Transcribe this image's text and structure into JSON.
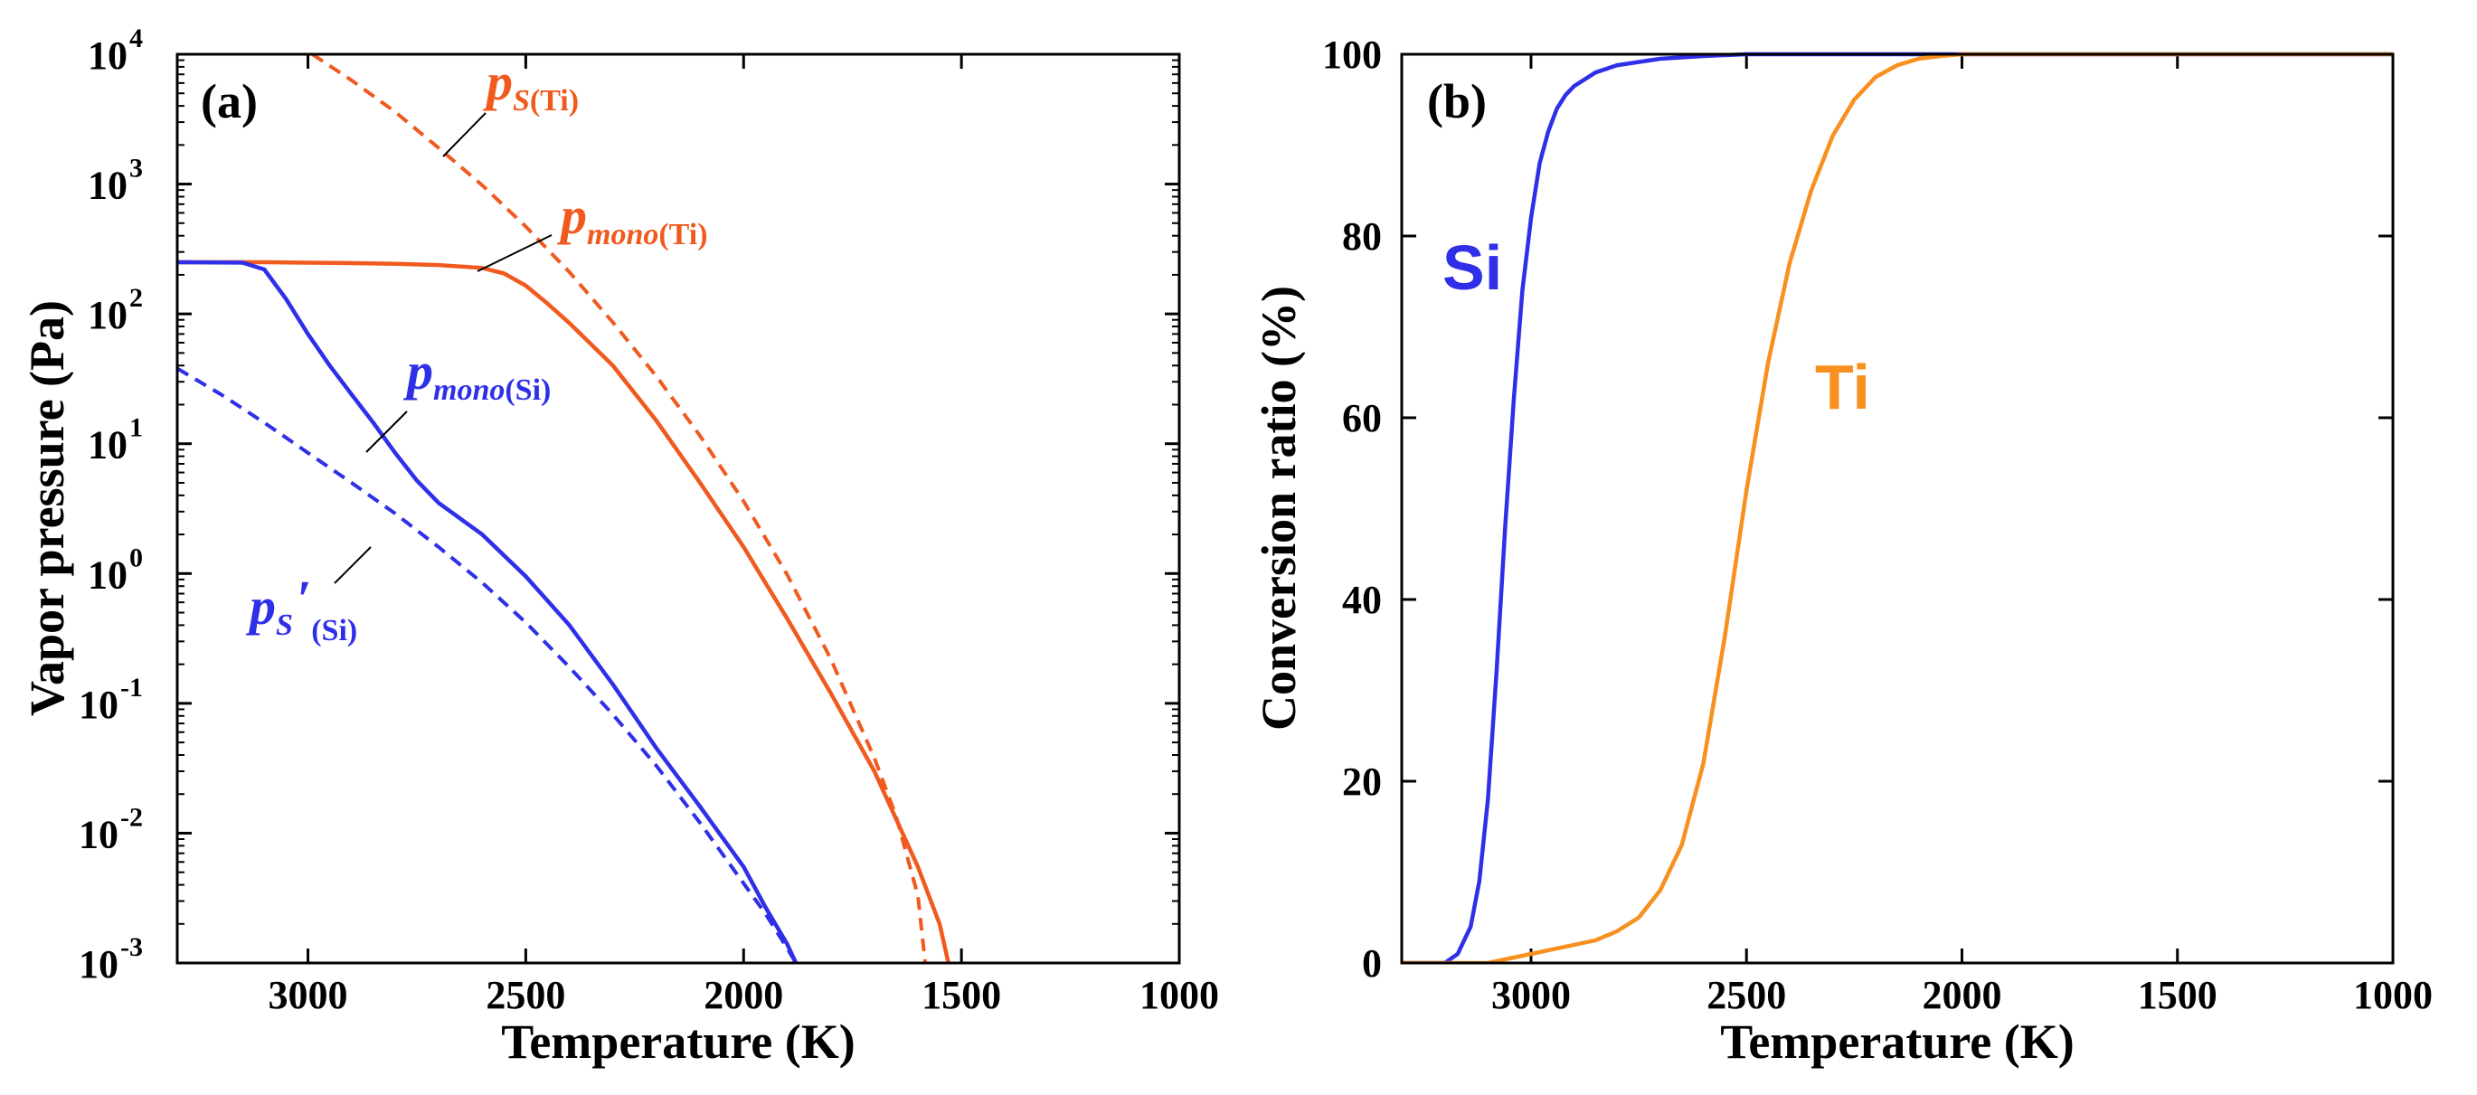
{
  "colors": {
    "ti_a": "#f05a1e",
    "si": "#2f2fe8",
    "ti_b": "#f7901e",
    "axis": "#000000"
  },
  "chart_data": [
    {
      "type": "line",
      "panel_label": "(a)",
      "xlabel": "Temperature (K)",
      "ylabel": "Vapor pressure (Pa)",
      "xlim": [
        3300,
        1000
      ],
      "x_ticks": [
        3000,
        2500,
        2000,
        1500,
        1000
      ],
      "y_scale": "log",
      "ylim": [
        0.001,
        10000
      ],
      "y_ticks": [
        {
          "base": "10",
          "exp": "-3",
          "value": 0.001
        },
        {
          "base": "10",
          "exp": "-2",
          "value": 0.01
        },
        {
          "base": "10",
          "exp": "-1",
          "value": 0.1
        },
        {
          "base": "10",
          "exp": "0",
          "value": 1
        },
        {
          "base": "10",
          "exp": "1",
          "value": 10
        },
        {
          "base": "10",
          "exp": "2",
          "value": 100
        },
        {
          "base": "10",
          "exp": "3",
          "value": 1000
        },
        {
          "base": "10",
          "exp": "4",
          "value": 10000
        }
      ],
      "annotations": [
        {
          "name": "ps-ti",
          "p": "p",
          "sub_italic": "S",
          "sub_bold": "(Ti)",
          "color_key": "ti_a"
        },
        {
          "name": "pmono-ti",
          "p": "p",
          "sub_italic": "mono",
          "sub_bold": "(Ti)",
          "color_key": "ti_a"
        },
        {
          "name": "pmono-si",
          "p": "p",
          "sub_italic": "mono",
          "sub_bold": "(Si)",
          "color_key": "si"
        },
        {
          "name": "ps-prime-si",
          "p": "p",
          "sub_italic": "S",
          "prime": "′",
          "sub_bold": "(Si)",
          "color_key": "si"
        }
      ],
      "series": [
        {
          "name": "p_S(Ti)",
          "style": "dashed",
          "color_key": "ti_a",
          "x": [
            2990,
            2900,
            2800,
            2700,
            2600,
            2500,
            2400,
            2300,
            2200,
            2100,
            2000,
            1900,
            1800,
            1700,
            1650,
            1600,
            1583
          ],
          "y": [
            10000,
            6300,
            3600,
            1900,
            980,
            470,
            210,
            86,
            33,
            11.5,
            3.6,
            0.98,
            0.22,
            0.038,
            0.0135,
            0.0033,
            0.001
          ]
        },
        {
          "name": "p_mono(Ti)",
          "style": "solid",
          "color_key": "ti_a",
          "x": [
            3300,
            3100,
            3000,
            2900,
            2800,
            2700,
            2600,
            2550,
            2500,
            2450,
            2400,
            2300,
            2200,
            2100,
            2000,
            1900,
            1800,
            1700,
            1600,
            1550,
            1530
          ],
          "y": [
            250,
            250,
            248,
            246,
            243,
            238,
            226,
            205,
            165,
            120,
            85,
            40,
            15,
            5,
            1.6,
            0.45,
            0.12,
            0.03,
            0.0055,
            0.002,
            0.001
          ]
        },
        {
          "name": "p_mono(Si)",
          "style": "solid",
          "color_key": "si",
          "x": [
            3300,
            3150,
            3100,
            3050,
            3000,
            2950,
            2900,
            2850,
            2800,
            2750,
            2700,
            2600,
            2500,
            2400,
            2300,
            2200,
            2100,
            2000,
            1950,
            1900,
            1880
          ],
          "y": [
            250,
            248,
            220,
            130,
            70,
            40,
            24,
            14.5,
            8.5,
            5.2,
            3.5,
            2.0,
            0.95,
            0.4,
            0.14,
            0.045,
            0.016,
            0.0055,
            0.0027,
            0.0014,
            0.001
          ]
        },
        {
          "name": "p_S'(Si)",
          "style": "dashed",
          "color_key": "si",
          "x": [
            3300,
            3200,
            3100,
            3000,
            2900,
            2800,
            2700,
            2600,
            2500,
            2400,
            2300,
            2200,
            2100,
            2000,
            1950,
            1900,
            1880
          ],
          "y": [
            38,
            24,
            14.5,
            8.5,
            5,
            2.9,
            1.6,
            0.85,
            0.42,
            0.19,
            0.082,
            0.033,
            0.012,
            0.0041,
            0.0024,
            0.0013,
            0.001
          ]
        }
      ]
    },
    {
      "type": "line",
      "panel_label": "(b)",
      "xlabel": "Temperature (K)",
      "ylabel": "Conversion ratio (%)",
      "xlim": [
        3300,
        1000
      ],
      "x_ticks": [
        3000,
        2500,
        2000,
        1500,
        1000
      ],
      "ylim": [
        0,
        100
      ],
      "y_ticks": [
        0,
        20,
        40,
        60,
        80,
        100
      ],
      "series_labels": [
        {
          "text": "Si",
          "color_key": "si"
        },
        {
          "text": "Ti",
          "color_key": "ti_b"
        }
      ],
      "series": [
        {
          "name": "Si",
          "style": "solid",
          "color_key": "si",
          "x": [
            3300,
            3200,
            3170,
            3140,
            3120,
            3100,
            3080,
            3060,
            3040,
            3020,
            3000,
            2980,
            2960,
            2940,
            2920,
            2900,
            2850,
            2800,
            2700,
            2600,
            2500,
            2000,
            1000
          ],
          "y": [
            0,
            0,
            1,
            4,
            9,
            18,
            32,
            48,
            62,
            74,
            82,
            88,
            91.5,
            94,
            95.5,
            96.5,
            98,
            98.8,
            99.5,
            99.8,
            100,
            100,
            100
          ]
        },
        {
          "name": "Ti",
          "style": "solid",
          "color_key": "ti_b",
          "x": [
            3300,
            3100,
            3000,
            2950,
            2900,
            2850,
            2800,
            2750,
            2700,
            2650,
            2600,
            2550,
            2500,
            2450,
            2400,
            2350,
            2300,
            2250,
            2200,
            2150,
            2100,
            2050,
            2000,
            1900,
            1000
          ],
          "y": [
            0,
            0,
            1,
            1.5,
            2,
            2.5,
            3.5,
            5,
            8,
            13,
            22,
            36,
            52,
            66,
            77,
            85,
            91,
            95,
            97.5,
            98.8,
            99.5,
            99.8,
            100,
            100,
            100
          ]
        }
      ]
    }
  ]
}
